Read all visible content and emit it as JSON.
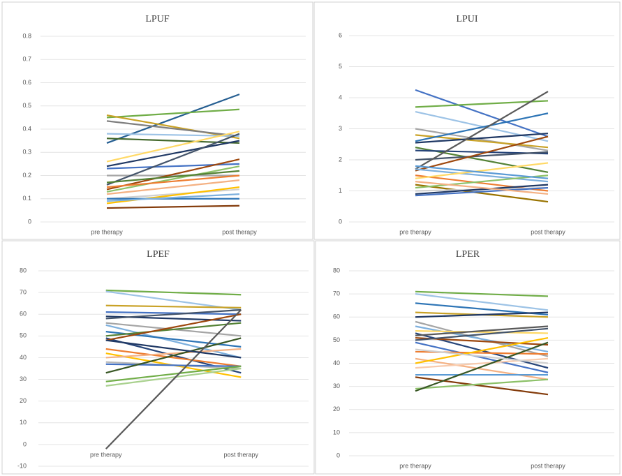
{
  "chart_data": [
    {
      "type": "line",
      "title": "LPUF",
      "categories": [
        "pre therapy",
        "post therapy"
      ],
      "ylim": [
        0,
        0.8
      ],
      "yticks": [
        0,
        0.1,
        0.2,
        0.3,
        0.4,
        0.5,
        0.6,
        0.7,
        0.8
      ],
      "grid": true,
      "series": [
        {
          "color": "#255e91",
          "values": [
            0.34,
            0.55
          ]
        },
        {
          "color": "#70ad47",
          "values": [
            0.45,
            0.485
          ]
        },
        {
          "color": "#c9a227",
          "values": [
            0.46,
            0.36
          ]
        },
        {
          "color": "#7f7f7f",
          "values": [
            0.435,
            0.37
          ]
        },
        {
          "color": "#9dc3e6",
          "values": [
            0.38,
            0.37
          ]
        },
        {
          "color": "#43682b",
          "values": [
            0.36,
            0.34
          ]
        },
        {
          "color": "#ffd966",
          "values": [
            0.26,
            0.39
          ]
        },
        {
          "color": "#1f3864",
          "values": [
            0.24,
            0.35
          ]
        },
        {
          "color": "#4472c4",
          "values": [
            0.23,
            0.25
          ]
        },
        {
          "color": "#a5a5a5",
          "values": [
            0.2,
            0.2
          ]
        },
        {
          "color": "#44546a",
          "values": [
            0.16,
            0.38
          ]
        },
        {
          "color": "#9e480e",
          "values": [
            0.14,
            0.27
          ]
        },
        {
          "color": "#8cc168",
          "values": [
            0.13,
            0.24
          ]
        },
        {
          "color": "#ed7d31",
          "values": [
            0.15,
            0.2
          ]
        },
        {
          "color": "#f4b183",
          "values": [
            0.12,
            0.18
          ]
        },
        {
          "color": "#d0d0d0",
          "values": [
            0.1,
            0.14
          ]
        },
        {
          "color": "#ffc000",
          "values": [
            0.08,
            0.15
          ]
        },
        {
          "color": "#2e75b6",
          "values": [
            0.1,
            0.1
          ]
        },
        {
          "color": "#843c0c",
          "values": [
            0.06,
            0.07
          ]
        },
        {
          "color": "#7cafdd",
          "values": [
            0.09,
            0.12
          ]
        },
        {
          "color": "#548235",
          "values": [
            0.17,
            0.22
          ]
        }
      ]
    },
    {
      "type": "line",
      "title": "LPUI",
      "categories": [
        "pre therapy",
        "post therapy"
      ],
      "ylim": [
        0,
        6
      ],
      "yticks": [
        0,
        1,
        2,
        3,
        4,
        5,
        6
      ],
      "grid": true,
      "series": [
        {
          "color": "#4472c4",
          "values": [
            4.25,
            2.75
          ]
        },
        {
          "color": "#70ad47",
          "values": [
            3.7,
            3.9
          ]
        },
        {
          "color": "#9dc3e6",
          "values": [
            3.55,
            2.6
          ]
        },
        {
          "color": "#a5a5a5",
          "values": [
            3.0,
            2.3
          ]
        },
        {
          "color": "#c9a227",
          "values": [
            2.8,
            2.4
          ]
        },
        {
          "color": "#2e75b6",
          "values": [
            2.6,
            3.5
          ]
        },
        {
          "color": "#1f3864",
          "values": [
            2.55,
            2.85
          ]
        },
        {
          "color": "#548235",
          "values": [
            2.4,
            1.6
          ]
        },
        {
          "color": "#264478",
          "values": [
            2.3,
            2.2
          ]
        },
        {
          "color": "#44546a",
          "values": [
            2.0,
            2.25
          ]
        },
        {
          "color": "#595959",
          "values": [
            1.7,
            4.2
          ]
        },
        {
          "color": "#9e480e",
          "values": [
            1.65,
            2.75
          ]
        },
        {
          "color": "#7cafdd",
          "values": [
            1.7,
            1.3
          ]
        },
        {
          "color": "#ed7d31",
          "values": [
            1.5,
            1.0
          ]
        },
        {
          "color": "#ffd966",
          "values": [
            1.4,
            1.9
          ]
        },
        {
          "color": "#997300",
          "values": [
            1.2,
            0.65
          ]
        },
        {
          "color": "#8cc168",
          "values": [
            1.1,
            1.5
          ]
        },
        {
          "color": "#d0d0d0",
          "values": [
            1.0,
            1.1
          ]
        },
        {
          "color": "#4472c4",
          "values": [
            0.85,
            1.1
          ]
        },
        {
          "color": "#1f3864",
          "values": [
            0.9,
            1.2
          ]
        },
        {
          "color": "#f4b183",
          "values": [
            1.3,
            0.9
          ]
        },
        {
          "color": "#5b9bd5",
          "values": [
            1.8,
            1.4
          ]
        }
      ]
    },
    {
      "type": "line",
      "title": "LPEF",
      "categories": [
        "pre therapy",
        "post therapy"
      ],
      "ylim": [
        -10,
        80
      ],
      "yticks": [
        -10,
        0,
        10,
        20,
        30,
        40,
        50,
        60,
        70,
        80
      ],
      "grid": true,
      "series": [
        {
          "color": "#70ad47",
          "values": [
            71,
            69
          ]
        },
        {
          "color": "#9dc3e6",
          "values": [
            70.5,
            62
          ]
        },
        {
          "color": "#c9a227",
          "values": [
            64,
            63
          ]
        },
        {
          "color": "#4472c4",
          "values": [
            61,
            60
          ]
        },
        {
          "color": "#1f3864",
          "values": [
            59,
            57
          ]
        },
        {
          "color": "#44546a",
          "values": [
            58,
            62
          ]
        },
        {
          "color": "#a5a5a5",
          "values": [
            56,
            50
          ]
        },
        {
          "color": "#7cafdd",
          "values": [
            55,
            40
          ]
        },
        {
          "color": "#2e75b6",
          "values": [
            52,
            45
          ]
        },
        {
          "color": "#548235",
          "values": [
            50,
            56
          ]
        },
        {
          "color": "#264478",
          "values": [
            49,
            33
          ]
        },
        {
          "color": "#9e480e",
          "values": [
            48,
            60
          ]
        },
        {
          "color": "#ed7d31",
          "values": [
            44,
            36
          ]
        },
        {
          "color": "#ffc000",
          "values": [
            42,
            31
          ]
        },
        {
          "color": "#f4b183",
          "values": [
            40,
            44
          ]
        },
        {
          "color": "#b7b7b7",
          "values": [
            38,
            35
          ]
        },
        {
          "color": "#4472c4",
          "values": [
            37,
            36
          ]
        },
        {
          "color": "#375623",
          "values": [
            33,
            49
          ]
        },
        {
          "color": "#70ad47",
          "values": [
            29,
            36
          ]
        },
        {
          "color": "#a9d18e",
          "values": [
            27,
            35
          ]
        },
        {
          "color": "#595959",
          "values": [
            -2,
            62
          ]
        },
        {
          "color": "#1f3864",
          "values": [
            48,
            40
          ]
        }
      ]
    },
    {
      "type": "line",
      "title": "LPER",
      "categories": [
        "pre therapy",
        "post therapy"
      ],
      "ylim": [
        0,
        80
      ],
      "yticks": [
        0,
        10,
        20,
        30,
        40,
        50,
        60,
        70,
        80
      ],
      "grid": true,
      "series": [
        {
          "color": "#70ad47",
          "values": [
            71,
            69
          ]
        },
        {
          "color": "#9dc3e6",
          "values": [
            70,
            63
          ]
        },
        {
          "color": "#2e75b6",
          "values": [
            66,
            61
          ]
        },
        {
          "color": "#c9a227",
          "values": [
            62,
            60
          ]
        },
        {
          "color": "#1f3864",
          "values": [
            60,
            62
          ]
        },
        {
          "color": "#a5a5a5",
          "values": [
            58,
            43
          ]
        },
        {
          "color": "#7cafdd",
          "values": [
            56,
            45
          ]
        },
        {
          "color": "#ffd966",
          "values": [
            54,
            53
          ]
        },
        {
          "color": "#264478",
          "values": [
            53,
            38
          ]
        },
        {
          "color": "#595959",
          "values": [
            52,
            56
          ]
        },
        {
          "color": "#9e480e",
          "values": [
            51,
            48
          ]
        },
        {
          "color": "#44546a",
          "values": [
            50,
            55
          ]
        },
        {
          "color": "#4472c4",
          "values": [
            49,
            36
          ]
        },
        {
          "color": "#ed7d31",
          "values": [
            45,
            44
          ]
        },
        {
          "color": "#f4b183",
          "values": [
            42,
            33
          ]
        },
        {
          "color": "#ffc000",
          "values": [
            40,
            51
          ]
        },
        {
          "color": "#f8cbad",
          "values": [
            38,
            42
          ]
        },
        {
          "color": "#5b9bd5",
          "values": [
            35,
            35
          ]
        },
        {
          "color": "#843c0c",
          "values": [
            34,
            26.5
          ]
        },
        {
          "color": "#8cc168",
          "values": [
            29,
            33
          ]
        },
        {
          "color": "#375623",
          "values": [
            28,
            49
          ]
        },
        {
          "color": "#d0d0d0",
          "values": [
            46,
            40
          ]
        }
      ]
    }
  ]
}
